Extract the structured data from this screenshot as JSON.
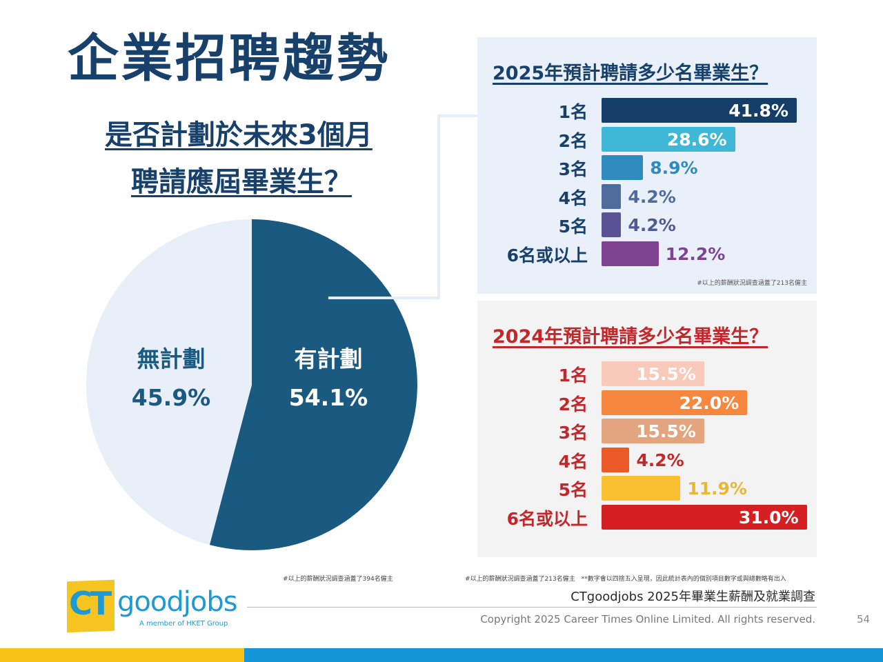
{
  "header": {
    "title": "企業招聘趨勢",
    "subtitle_line1": "是否計劃於未來3個月",
    "subtitle_line2": "聘請應屆畢業生？"
  },
  "colors": {
    "navy": "#17406b",
    "red_title": "#c2282b",
    "pie_yes": "#1b5a80",
    "pie_no": "#e8eff9",
    "brand_yellow": "#f8c316",
    "brand_blue": "#1596d6"
  },
  "chart_data": [
    {
      "type": "pie",
      "title": "是否計劃於未來3個月聘請應屆畢業生？",
      "slices": [
        {
          "label": "有計劃",
          "value": 54.1,
          "display": "54.1%",
          "color": "#1b5a80",
          "text_color": "#ffffff"
        },
        {
          "label": "無計劃",
          "value": 45.9,
          "display": "45.9%",
          "color": "#e8eff9",
          "text_color": "#1b5a80"
        }
      ],
      "start": "top",
      "direction": "clockwise"
    },
    {
      "type": "bar",
      "orientation": "horizontal",
      "title": "2025年預計聘請多少名畢業生？",
      "categories": [
        "1名",
        "2名",
        "3名",
        "4名",
        "5名",
        "6名或以上"
      ],
      "values": [
        41.8,
        28.6,
        8.9,
        4.2,
        4.2,
        12.2
      ],
      "labels": [
        "41.8%",
        "28.6%",
        "8.9%",
        "4.2%",
        "4.2%",
        "12.2%"
      ],
      "colors": [
        "#143e68",
        "#3fb8d8",
        "#2f8bbd",
        "#4f6a9c",
        "#5a5292",
        "#7f4391"
      ],
      "label_inside": [
        true,
        true,
        false,
        false,
        false,
        false
      ],
      "label_colors": [
        "#ffffff",
        "#ffffff",
        "#2f8bbd",
        "#4f6a9c",
        "#4f5a90",
        "#7f4391"
      ],
      "note": "#以上的薪酬狀況調查涵蓋了213名僱主",
      "xlim": [
        0,
        45
      ]
    },
    {
      "type": "bar",
      "orientation": "horizontal",
      "title": "2024年預計聘請多少名畢業生？",
      "categories": [
        "1名",
        "2名",
        "3名",
        "4名",
        "5名",
        "6名或以上"
      ],
      "values": [
        15.5,
        22.0,
        15.5,
        4.2,
        11.9,
        31.0
      ],
      "labels": [
        "15.5%",
        "22.0%",
        "15.5%",
        "4.2%",
        "11.9%",
        "31.0%"
      ],
      "colors": [
        "#f9c9b9",
        "#f5873f",
        "#e3a57f",
        "#ec5a2a",
        "#fbc032",
        "#d51f22"
      ],
      "label_inside": [
        true,
        true,
        true,
        false,
        false,
        true
      ],
      "label_colors": [
        "#ffffff",
        "#ffffff",
        "#ffffff",
        "#c2282b",
        "#e9b733",
        "#ffffff"
      ],
      "xlim": [
        0,
        32
      ]
    }
  ],
  "footer": {
    "note_left": "#以上的薪酬狀況調查涵蓋了394名僱主",
    "note_right": "#以上的薪酬狀況調查涵蓋了213名僱主　**數字會以四捨五入呈現，因此統計表內的個別項目數字或與總數略有出入",
    "survey_name": "CTgoodjobs 2025年畢業生薪酬及就業調查",
    "copyright": "Copyright 2025 Career Times Online Limited. All rights reserved.",
    "page_number": "54"
  },
  "logo": {
    "ct": "CT",
    "goodjobs": "goodjobs",
    "tagline": "A member of HKET Group"
  }
}
